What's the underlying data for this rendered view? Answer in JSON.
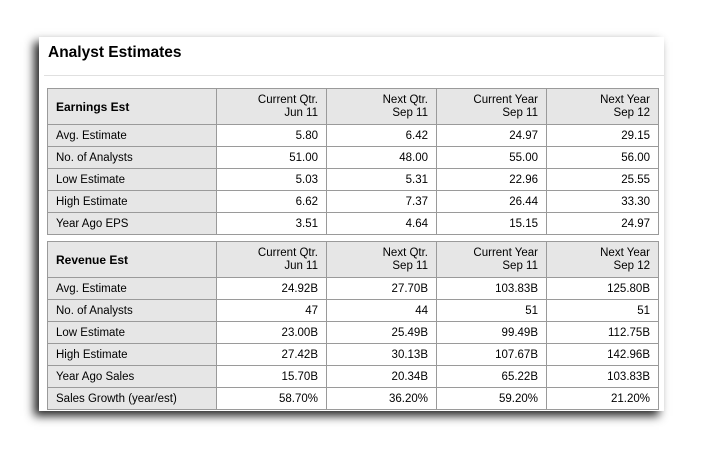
{
  "title": "Analyst Estimates",
  "columns": [
    {
      "line1": "Current Qtr.",
      "line2": "Jun 11"
    },
    {
      "line1": "Next Qtr.",
      "line2": "Sep 11"
    },
    {
      "line1": "Current Year",
      "line2": "Sep 11"
    },
    {
      "line1": "Next Year",
      "line2": "Sep 12"
    }
  ],
  "earnings": {
    "heading": "Earnings Est",
    "rows": [
      {
        "label": "Avg. Estimate",
        "values": [
          "5.80",
          "6.42",
          "24.97",
          "29.15"
        ]
      },
      {
        "label": "No. of Analysts",
        "values": [
          "51.00",
          "48.00",
          "55.00",
          "56.00"
        ]
      },
      {
        "label": "Low Estimate",
        "values": [
          "5.03",
          "5.31",
          "22.96",
          "25.55"
        ]
      },
      {
        "label": "High Estimate",
        "values": [
          "6.62",
          "7.37",
          "26.44",
          "33.30"
        ]
      },
      {
        "label": "Year Ago EPS",
        "values": [
          "3.51",
          "4.64",
          "15.15",
          "24.97"
        ]
      }
    ]
  },
  "revenue": {
    "heading": "Revenue Est",
    "rows": [
      {
        "label": "Avg. Estimate",
        "values": [
          "24.92B",
          "27.70B",
          "103.83B",
          "125.80B"
        ]
      },
      {
        "label": "No. of Analysts",
        "values": [
          "47",
          "44",
          "51",
          "51"
        ]
      },
      {
        "label": "Low Estimate",
        "values": [
          "23.00B",
          "25.49B",
          "99.49B",
          "112.75B"
        ]
      },
      {
        "label": "High Estimate",
        "values": [
          "27.42B",
          "30.13B",
          "107.67B",
          "142.96B"
        ]
      },
      {
        "label": "Year Ago Sales",
        "values": [
          "15.70B",
          "20.34B",
          "65.22B",
          "103.83B"
        ]
      },
      {
        "label": "Sales Growth (year/est)",
        "values": [
          "58.70%",
          "36.20%",
          "59.20%",
          "21.20%"
        ]
      }
    ]
  }
}
